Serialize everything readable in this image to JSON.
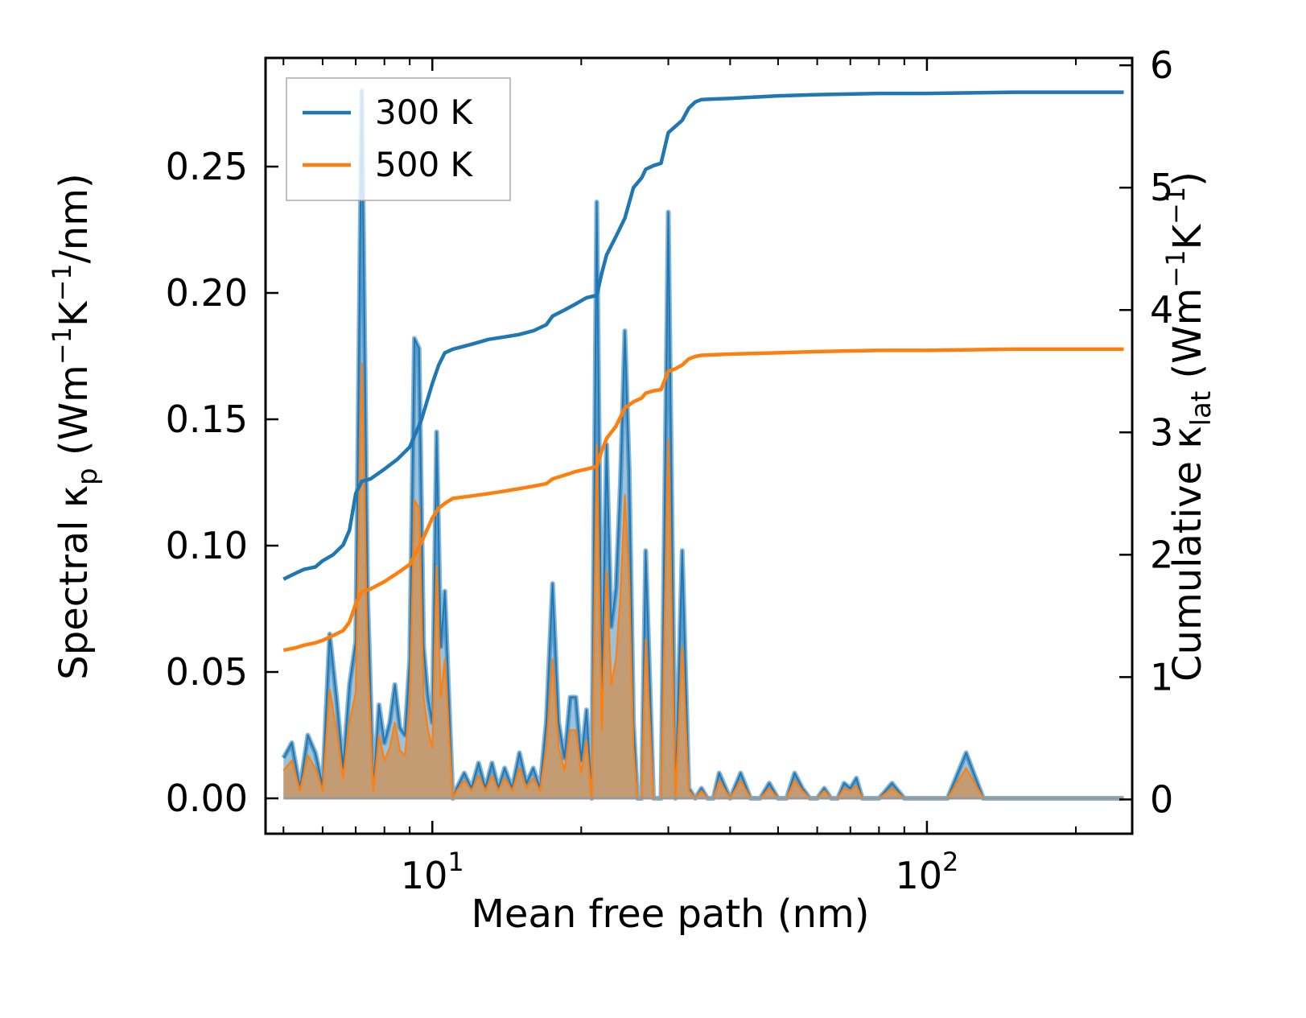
{
  "chart_data": {
    "type": "line",
    "title": "",
    "xlabel": "Mean free path (nm)",
    "xscale": "log",
    "xlim": [
      4.6,
      260
    ],
    "x_ticks": [
      {
        "value": 10,
        "base": "10",
        "exp": "1"
      },
      {
        "value": 100,
        "base": "10",
        "exp": "2"
      }
    ],
    "y_left": {
      "label_main": "Spectral κ",
      "label_sub": "p",
      "label_units": [
        "(Wm",
        "−1",
        "K",
        "−1",
        "/nm)"
      ],
      "ylim": [
        -0.014,
        0.293
      ],
      "ticks": [
        0.0,
        0.05,
        0.1,
        0.15,
        0.2,
        0.25
      ],
      "tick_labels": [
        "0.00",
        "0.05",
        "0.10",
        "0.15",
        "0.20",
        "0.25"
      ]
    },
    "y_right": {
      "label_main": "Cumulative κ",
      "label_sub": "lat",
      "label_units": [
        "(Wm",
        "−1",
        "K",
        "−1",
        ")"
      ],
      "ylim": [
        -0.28,
        6.06
      ],
      "ticks": [
        0,
        1,
        2,
        3,
        4,
        5,
        6
      ],
      "tick_labels": [
        "0",
        "1",
        "2",
        "3",
        "4",
        "5",
        "6"
      ]
    },
    "legend": {
      "location": "upper-left",
      "entries": [
        "300 K",
        "500 K"
      ]
    },
    "colors": {
      "300 K": "#1f77b4",
      "500 K": "#ff7f0e",
      "fill": "#c59a6d"
    },
    "spectral": {
      "x": [
        5.0,
        5.2,
        5.4,
        5.6,
        5.8,
        6.0,
        6.2,
        6.4,
        6.6,
        6.8,
        7.0,
        7.2,
        7.4,
        7.6,
        7.8,
        8.0,
        8.2,
        8.4,
        8.6,
        8.8,
        9.0,
        9.2,
        9.4,
        9.6,
        9.8,
        10.0,
        10.2,
        10.4,
        10.6,
        10.8,
        11.0,
        11.2,
        11.6,
        12.0,
        12.4,
        12.8,
        13.2,
        13.6,
        14.0,
        14.5,
        15.0,
        15.5,
        16.0,
        16.5,
        17.0,
        17.5,
        18.0,
        18.5,
        19.0,
        19.5,
        20.0,
        20.5,
        21.0,
        21.5,
        22.0,
        22.5,
        23.0,
        23.5,
        24.0,
        24.5,
        25.0,
        25.5,
        26.0,
        26.5,
        27.0,
        28.0,
        29.0,
        30.0,
        31.0,
        32.0,
        33.0,
        34.0,
        35.0,
        36.0,
        37.0,
        38.0,
        40.0,
        42.0,
        44.0,
        46.0,
        48.0,
        50.0,
        52.0,
        54.0,
        56.0,
        58.0,
        60.0,
        62.0,
        64.0,
        66.0,
        68.0,
        70.0,
        72.0,
        74.0,
        76.0,
        78.0,
        80.0,
        85.0,
        90.0,
        95.0,
        100.0,
        105.0,
        110.0,
        120.0,
        130.0,
        135.0,
        140.0,
        145.0,
        150.0,
        170.0,
        190.0,
        210.0,
        230.0,
        240.0,
        245.0,
        250.0
      ],
      "y300": [
        0.016,
        0.022,
        0.004,
        0.025,
        0.018,
        0.005,
        0.065,
        0.04,
        0.012,
        0.045,
        0.062,
        0.28,
        0.08,
        0.004,
        0.037,
        0.022,
        0.03,
        0.045,
        0.028,
        0.025,
        0.055,
        0.182,
        0.178,
        0.06,
        0.04,
        0.03,
        0.145,
        0.06,
        0.082,
        0.04,
        0.0,
        0.004,
        0.01,
        0.004,
        0.014,
        0.004,
        0.014,
        0.004,
        0.012,
        0.004,
        0.018,
        0.006,
        0.012,
        0.004,
        0.03,
        0.085,
        0.03,
        0.016,
        0.04,
        0.04,
        0.015,
        0.035,
        0.0,
        0.236,
        0.04,
        0.14,
        0.068,
        0.083,
        0.125,
        0.185,
        0.13,
        0.03,
        0.0,
        0.0,
        0.098,
        0.0,
        0.0,
        0.232,
        0.0,
        0.098,
        0.004,
        0.0,
        0.004,
        0.0,
        0.0,
        0.01,
        0.0,
        0.01,
        0.0,
        0.0,
        0.006,
        0.0,
        0.0,
        0.01,
        0.004,
        0.0,
        0.0,
        0.004,
        0.0,
        0.0,
        0.006,
        0.004,
        0.008,
        0.0,
        0.0,
        0.0,
        0.0,
        0.006,
        0.0,
        0.0,
        0.0,
        0.0,
        0.0,
        0.018,
        0.0,
        0.0,
        0.0,
        0.0,
        0.0,
        0.0,
        0.0,
        0.0,
        0.0,
        0.0,
        0.0,
        0.0
      ],
      "y500": [
        0.011,
        0.015,
        0.003,
        0.017,
        0.012,
        0.003,
        0.043,
        0.027,
        0.008,
        0.03,
        0.042,
        0.172,
        0.054,
        0.003,
        0.025,
        0.015,
        0.02,
        0.03,
        0.019,
        0.017,
        0.037,
        0.118,
        0.115,
        0.04,
        0.027,
        0.02,
        0.092,
        0.04,
        0.055,
        0.027,
        0.0,
        0.003,
        0.007,
        0.003,
        0.009,
        0.003,
        0.009,
        0.003,
        0.008,
        0.003,
        0.012,
        0.004,
        0.008,
        0.003,
        0.02,
        0.055,
        0.02,
        0.011,
        0.027,
        0.027,
        0.01,
        0.023,
        0.0,
        0.14,
        0.027,
        0.09,
        0.045,
        0.055,
        0.08,
        0.12,
        0.085,
        0.02,
        0.0,
        0.0,
        0.063,
        0.0,
        0.0,
        0.142,
        0.0,
        0.06,
        0.003,
        0.0,
        0.003,
        0.0,
        0.0,
        0.007,
        0.0,
        0.007,
        0.0,
        0.0,
        0.004,
        0.0,
        0.0,
        0.007,
        0.003,
        0.0,
        0.0,
        0.003,
        0.0,
        0.0,
        0.004,
        0.003,
        0.005,
        0.0,
        0.0,
        0.0,
        0.0,
        0.004,
        0.0,
        0.0,
        0.0,
        0.0,
        0.0,
        0.012,
        0.0,
        0.0,
        0.0,
        0.0,
        0.0,
        0.0,
        0.0,
        0.0,
        0.0,
        0.0,
        0.0,
        0.0
      ]
    },
    "cumulative": {
      "x300": [
        5.0,
        5.3,
        5.5,
        5.8,
        6.0,
        6.3,
        6.6,
        6.8,
        7.0,
        7.2,
        7.5,
        8.0,
        8.5,
        9.0,
        9.5,
        10.0,
        10.3,
        10.6,
        11.0,
        12.0,
        13.0,
        14.0,
        15.0,
        16.0,
        17.0,
        17.5,
        18.5,
        19.5,
        20.5,
        21.5,
        22.0,
        22.5,
        23.5,
        24.5,
        25.5,
        26.5,
        27.0,
        28.0,
        29.0,
        30.0,
        31.0,
        32.0,
        33.0,
        34.0,
        35.0,
        40.0,
        50.0,
        60.0,
        80.0,
        100.0,
        150.0,
        200.0,
        240.0,
        250.0
      ],
      "y300": [
        1.8,
        1.85,
        1.88,
        1.9,
        1.95,
        2.0,
        2.08,
        2.2,
        2.5,
        2.6,
        2.62,
        2.7,
        2.78,
        2.88,
        3.1,
        3.4,
        3.55,
        3.65,
        3.68,
        3.72,
        3.76,
        3.78,
        3.8,
        3.83,
        3.88,
        3.95,
        4.0,
        4.05,
        4.1,
        4.12,
        4.3,
        4.45,
        4.6,
        4.75,
        5.0,
        5.08,
        5.15,
        5.18,
        5.2,
        5.45,
        5.5,
        5.55,
        5.65,
        5.7,
        5.72,
        5.73,
        5.75,
        5.76,
        5.77,
        5.77,
        5.78,
        5.78,
        5.78,
        5.78
      ],
      "x500": [
        5.0,
        5.3,
        5.5,
        5.8,
        6.0,
        6.3,
        6.6,
        6.8,
        7.0,
        7.2,
        7.5,
        8.0,
        8.5,
        9.0,
        9.5,
        10.0,
        10.3,
        10.6,
        11.0,
        12.0,
        13.0,
        14.0,
        15.0,
        16.0,
        17.0,
        17.5,
        18.5,
        19.5,
        20.5,
        21.5,
        22.0,
        22.5,
        23.5,
        24.5,
        25.5,
        26.5,
        27.0,
        28.0,
        29.0,
        30.0,
        31.0,
        32.0,
        33.0,
        34.0,
        35.0,
        40.0,
        50.0,
        60.0,
        80.0,
        100.0,
        150.0,
        200.0,
        240.0,
        250.0
      ],
      "y500": [
        1.22,
        1.24,
        1.26,
        1.28,
        1.3,
        1.34,
        1.38,
        1.45,
        1.6,
        1.7,
        1.72,
        1.78,
        1.85,
        1.92,
        2.1,
        2.3,
        2.38,
        2.42,
        2.46,
        2.48,
        2.5,
        2.52,
        2.54,
        2.56,
        2.58,
        2.62,
        2.65,
        2.68,
        2.7,
        2.72,
        2.85,
        2.95,
        3.05,
        3.2,
        3.25,
        3.28,
        3.32,
        3.34,
        3.35,
        3.5,
        3.52,
        3.55,
        3.6,
        3.62,
        3.63,
        3.64,
        3.65,
        3.66,
        3.67,
        3.67,
        3.68,
        3.68,
        3.68,
        3.68
      ]
    }
  }
}
